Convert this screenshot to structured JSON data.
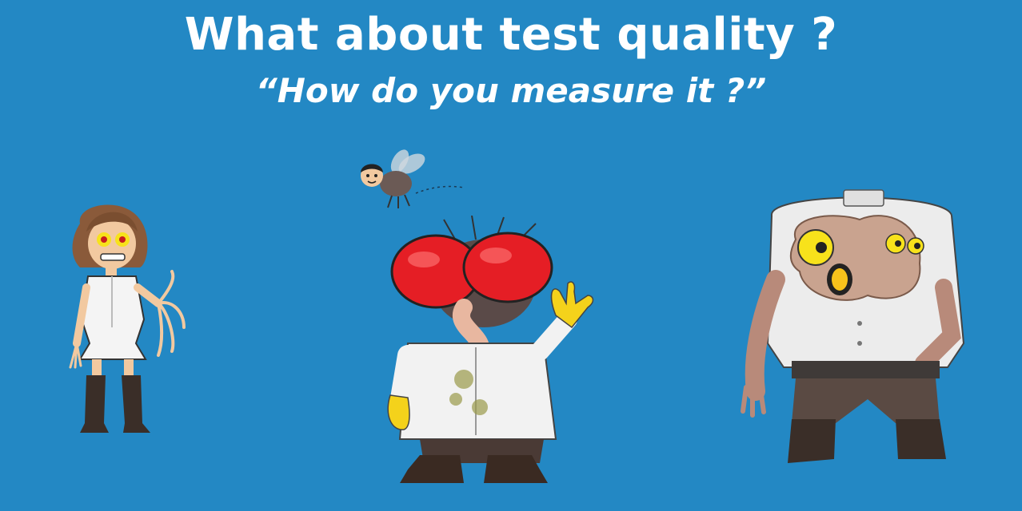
{
  "slide": {
    "title": "What about test quality ?",
    "subtitle": "“How do you measure it ?”",
    "background_color": "#2388c4",
    "illustrations": [
      "nurse-with-long-fingers-illustration",
      "small-fly-with-human-head-illustration",
      "fly-headed-scientist-illustration",
      "mutant-with-tumor-faces-illustration"
    ]
  }
}
